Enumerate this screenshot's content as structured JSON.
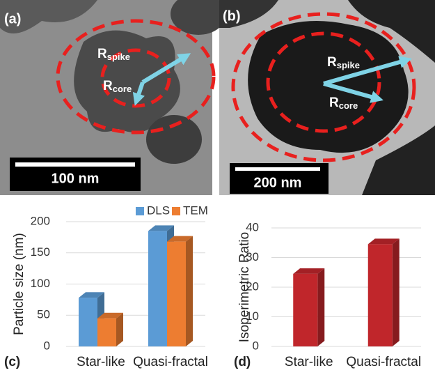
{
  "images": [
    {
      "panel": "(a)",
      "scale_bar": "100 nm",
      "labels": [
        {
          "symbol": "R",
          "subscript": "spike"
        },
        {
          "symbol": "R",
          "subscript": "core"
        }
      ]
    },
    {
      "panel": "(b)",
      "scale_bar": "200 nm",
      "labels": [
        {
          "symbol": "R",
          "subscript": "spike"
        },
        {
          "symbol": "R",
          "subscript": "core"
        }
      ]
    }
  ],
  "chart_data": [
    {
      "type": "bar",
      "panel": "(c)",
      "y_label": "Particle size (nm)",
      "categories": [
        "Star-like",
        "Quasi-fractal"
      ],
      "series": [
        {
          "name": "DLS",
          "color": "#5b9bd5",
          "values": [
            78,
            185
          ]
        },
        {
          "name": "TEM",
          "color": "#ed7d31",
          "values": [
            45,
            168
          ]
        }
      ],
      "ylim": [
        0,
        200
      ],
      "yticks": [
        0,
        50,
        100,
        150,
        200
      ],
      "grid": true,
      "legend": "top"
    },
    {
      "type": "bar",
      "panel": "(d)",
      "y_label": "Isoperimetric Ratio",
      "categories": [
        "Star-like",
        "Quasi-fractal"
      ],
      "series": [
        {
          "color": "#c0262b",
          "values": [
            24.5,
            34.5
          ]
        }
      ],
      "ylim": [
        0,
        40
      ],
      "yticks": [
        0,
        10,
        20,
        30,
        40
      ],
      "grid": true
    }
  ]
}
